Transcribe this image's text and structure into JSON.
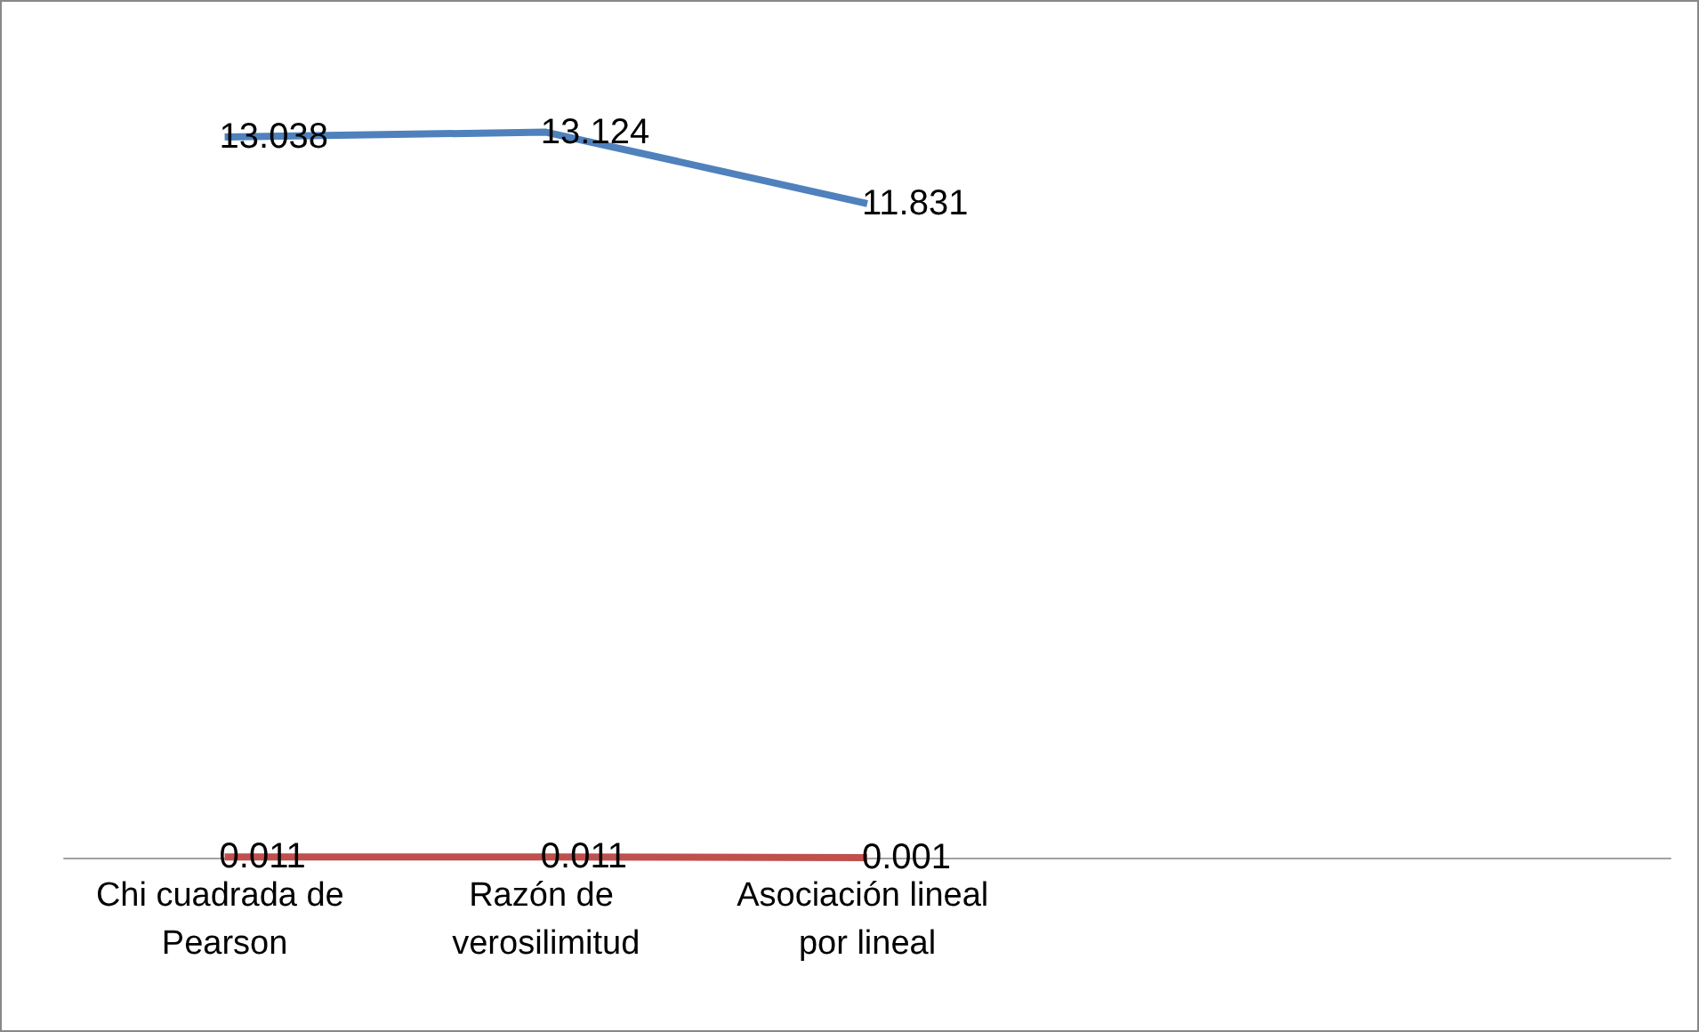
{
  "chart_data": {
    "type": "line",
    "categories": [
      "Chi cuadrada de Pearson",
      "Razón de verosilimitud",
      "Asociación lineal por lineal",
      null,
      null
    ],
    "series": [
      {
        "color": "#4f81bd",
        "values": [
          13.038,
          13.124,
          11.831,
          null,
          null
        ]
      },
      {
        "color": "#c0504d",
        "values": [
          0.011,
          0.011,
          0.001,
          null,
          null
        ]
      }
    ],
    "data_labels": true,
    "marker": "none",
    "grid": false
  }
}
